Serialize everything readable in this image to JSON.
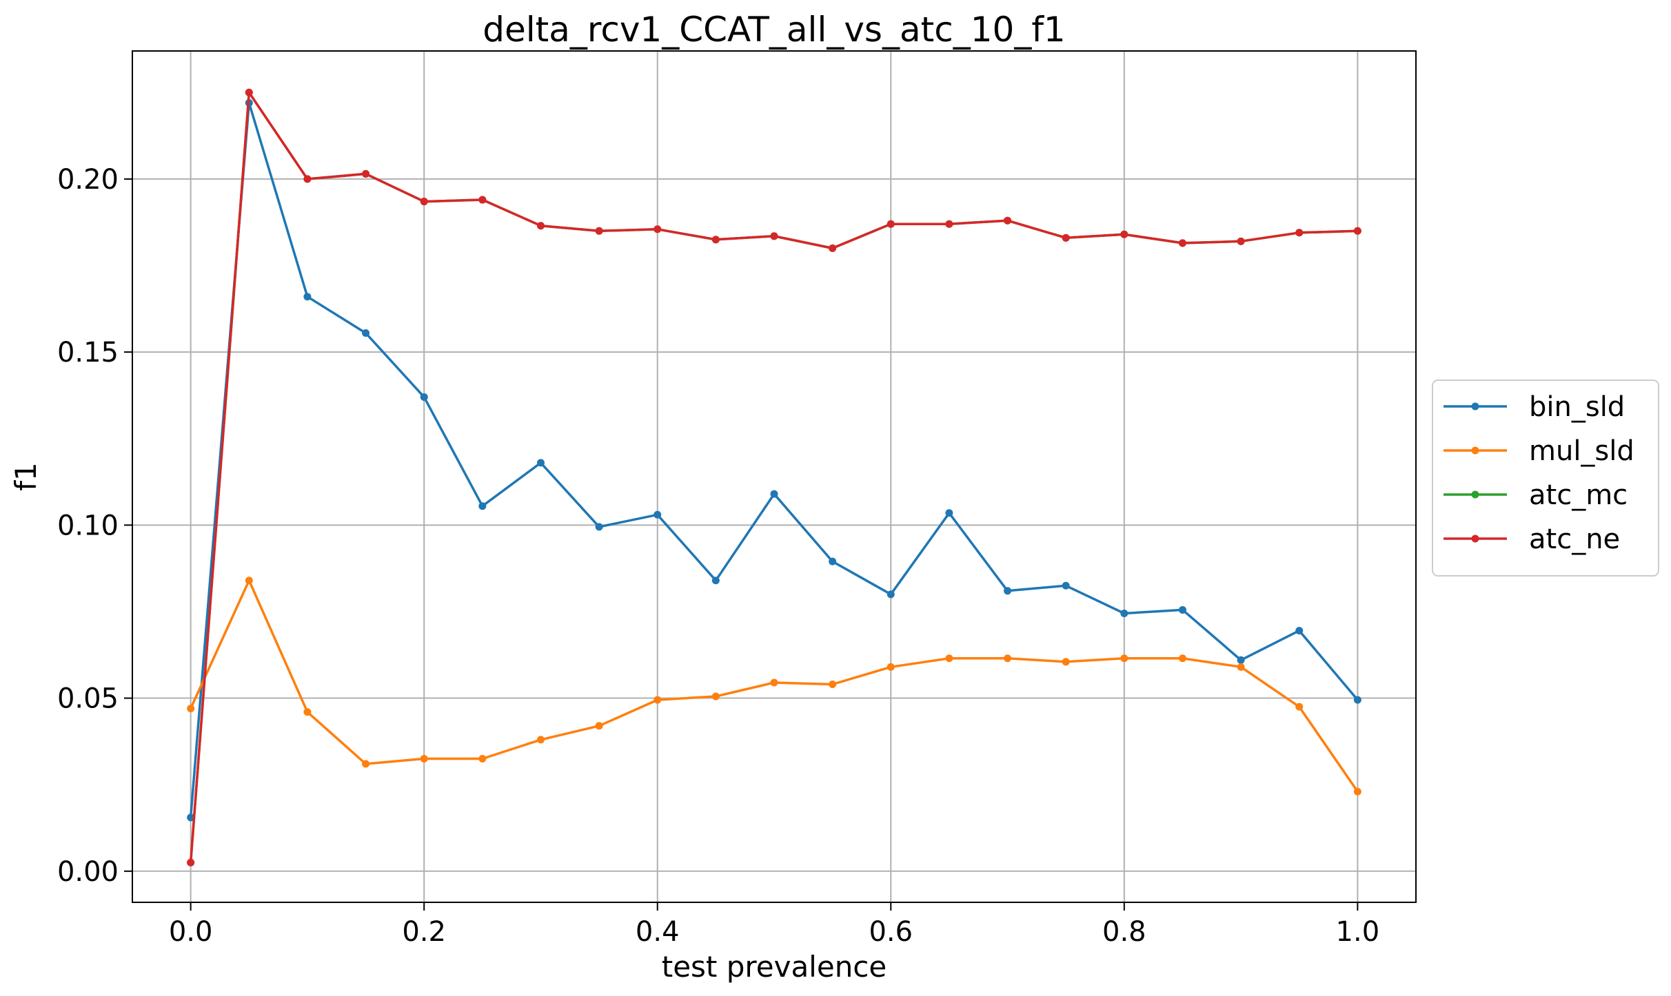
{
  "chart_data": {
    "type": "line",
    "title": "delta_rcv1_CCAT_all_vs_atc_10_f1",
    "xlabel": "test prevalence",
    "ylabel": "f1",
    "xlim": [
      -0.05,
      1.05
    ],
    "ylim": [
      -0.009,
      0.237
    ],
    "grid": true,
    "legend_position": "right-outside",
    "x": [
      0.0,
      0.05,
      0.1,
      0.15,
      0.2,
      0.25,
      0.3,
      0.35,
      0.4,
      0.45,
      0.5,
      0.55,
      0.6,
      0.65,
      0.7,
      0.75,
      0.8,
      0.85,
      0.9,
      0.95,
      1.0
    ],
    "xticks": [
      "0.0",
      "0.2",
      "0.4",
      "0.6",
      "0.8",
      "1.0"
    ],
    "xtick_values": [
      0.0,
      0.2,
      0.4,
      0.6,
      0.8,
      1.0
    ],
    "yticks": [
      "0.00",
      "0.05",
      "0.10",
      "0.15",
      "0.20"
    ],
    "ytick_values": [
      0.0,
      0.05,
      0.1,
      0.15,
      0.2
    ],
    "series": [
      {
        "name": "bin_sld",
        "color": "#1f77b4",
        "values": [
          0.0155,
          0.222,
          0.166,
          0.1555,
          0.137,
          0.1055,
          0.118,
          0.0995,
          0.103,
          0.084,
          0.109,
          0.0895,
          0.08,
          0.1035,
          0.081,
          0.0825,
          0.0745,
          0.0755,
          0.061,
          0.0695,
          0.0495
        ]
      },
      {
        "name": "mul_sld",
        "color": "#ff7f0e",
        "values": [
          0.047,
          0.084,
          0.046,
          0.031,
          0.0325,
          0.0325,
          0.038,
          0.042,
          0.0495,
          0.0505,
          0.0545,
          0.054,
          0.059,
          0.0615,
          0.0615,
          0.0605,
          0.0615,
          0.0615,
          0.059,
          0.0475,
          0.023
        ]
      },
      {
        "name": "atc_mc",
        "color": "#2ca02c",
        "values": [
          0.0025,
          0.225,
          0.2,
          0.2015,
          0.1935,
          0.194,
          0.1865,
          0.185,
          0.1855,
          0.1825,
          0.1835,
          0.18,
          0.187,
          0.187,
          0.188,
          0.183,
          0.184,
          0.1815,
          0.182,
          0.1845,
          0.185
        ]
      },
      {
        "name": "atc_ne",
        "color": "#d62728",
        "values": [
          0.0025,
          0.225,
          0.2,
          0.2015,
          0.1935,
          0.194,
          0.1865,
          0.185,
          0.1855,
          0.1825,
          0.1835,
          0.18,
          0.187,
          0.187,
          0.188,
          0.183,
          0.184,
          0.1815,
          0.182,
          0.1845,
          0.185
        ]
      }
    ]
  }
}
